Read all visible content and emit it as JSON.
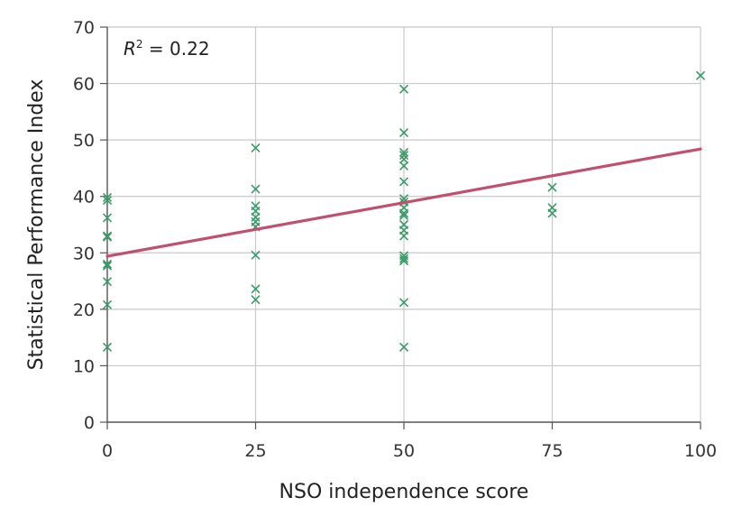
{
  "chart_data": {
    "type": "scatter",
    "xlabel": "NSO independence score",
    "ylabel": "Statistical Performance Index",
    "xlim": [
      0,
      100
    ],
    "ylim": [
      0,
      70
    ],
    "xticks": [
      0,
      25,
      50,
      75,
      100
    ],
    "yticks": [
      0,
      10,
      20,
      30,
      40,
      50,
      60,
      70
    ],
    "grid": true,
    "annotation": {
      "r_symbol": "R",
      "exponent": "2",
      "equals": " = 0.22"
    },
    "marker_color": "#3a9a68",
    "trendline_color": "#c0506e",
    "trendline": {
      "x": [
        0,
        100
      ],
      "y": [
        29.4,
        48.4
      ]
    },
    "points": [
      {
        "x": 0,
        "y": 39.8
      },
      {
        "x": 0,
        "y": 39.3
      },
      {
        "x": 0,
        "y": 36.2
      },
      {
        "x": 0,
        "y": 33.0
      },
      {
        "x": 0,
        "y": 32.8
      },
      {
        "x": 0,
        "y": 28.0
      },
      {
        "x": 0,
        "y": 27.7
      },
      {
        "x": 0,
        "y": 24.9
      },
      {
        "x": 0,
        "y": 20.8
      },
      {
        "x": 0,
        "y": 13.3
      },
      {
        "x": 25,
        "y": 48.6
      },
      {
        "x": 25,
        "y": 41.3
      },
      {
        "x": 25,
        "y": 38.3
      },
      {
        "x": 25,
        "y": 37.4
      },
      {
        "x": 25,
        "y": 36.3
      },
      {
        "x": 25,
        "y": 35.5
      },
      {
        "x": 25,
        "y": 34.6
      },
      {
        "x": 25,
        "y": 29.6
      },
      {
        "x": 25,
        "y": 23.6
      },
      {
        "x": 25,
        "y": 21.7
      },
      {
        "x": 50,
        "y": 59.0
      },
      {
        "x": 50,
        "y": 51.3
      },
      {
        "x": 50,
        "y": 47.8
      },
      {
        "x": 50,
        "y": 47.3
      },
      {
        "x": 50,
        "y": 46.6
      },
      {
        "x": 50,
        "y": 45.4
      },
      {
        "x": 50,
        "y": 42.6
      },
      {
        "x": 50,
        "y": 39.6
      },
      {
        "x": 50,
        "y": 39.0
      },
      {
        "x": 50,
        "y": 38.0
      },
      {
        "x": 50,
        "y": 37.0
      },
      {
        "x": 50,
        "y": 36.6
      },
      {
        "x": 50,
        "y": 35.0
      },
      {
        "x": 50,
        "y": 34.0
      },
      {
        "x": 50,
        "y": 33.0
      },
      {
        "x": 50,
        "y": 29.5
      },
      {
        "x": 50,
        "y": 29.0
      },
      {
        "x": 50,
        "y": 28.6
      },
      {
        "x": 50,
        "y": 21.2
      },
      {
        "x": 50,
        "y": 13.3
      },
      {
        "x": 75,
        "y": 41.6
      },
      {
        "x": 75,
        "y": 38.0
      },
      {
        "x": 75,
        "y": 37.0
      },
      {
        "x": 100,
        "y": 61.4
      }
    ]
  }
}
